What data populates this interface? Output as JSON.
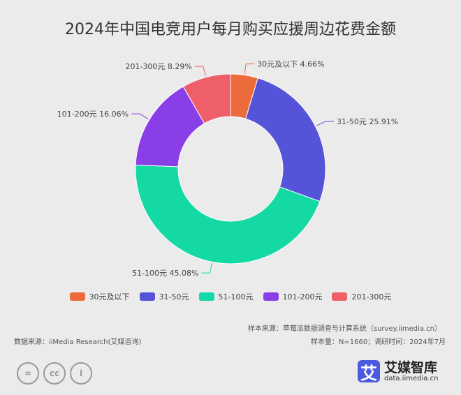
{
  "chart_data": {
    "type": "pie",
    "donut": true,
    "title": "2024年中国电竞用户每月购买应援周边花费金额",
    "categories": [
      "30元及以下",
      "31-50元",
      "51-100元",
      "101-200元",
      "201-300元"
    ],
    "values": [
      4.66,
      25.91,
      45.08,
      16.06,
      8.29
    ],
    "labels": [
      "30元及以下 4.66%",
      "31-50元 25.91%",
      "51-100元 45.08%",
      "101-200元 16.06%",
      "201-300元 8.29%"
    ],
    "colors": [
      "#ED6A3A",
      "#5553D8",
      "#15D9A4",
      "#8A3EE8",
      "#EE5F6A"
    ],
    "legend_position": "bottom"
  },
  "footer": {
    "source_left": "数据来源：iiMedia Research(艾媒咨询)",
    "sample_source": "样本来源：草莓派数据调查与计算系统（survey.iimedia.cn）",
    "sample_info": "样本量：N=1660；调研时间：2024年7月",
    "cc_icons": [
      "=",
      "cc",
      "i"
    ],
    "logo_mark": "艾",
    "logo_name": "艾媒智库",
    "logo_url": "data.iimedia.cn"
  }
}
